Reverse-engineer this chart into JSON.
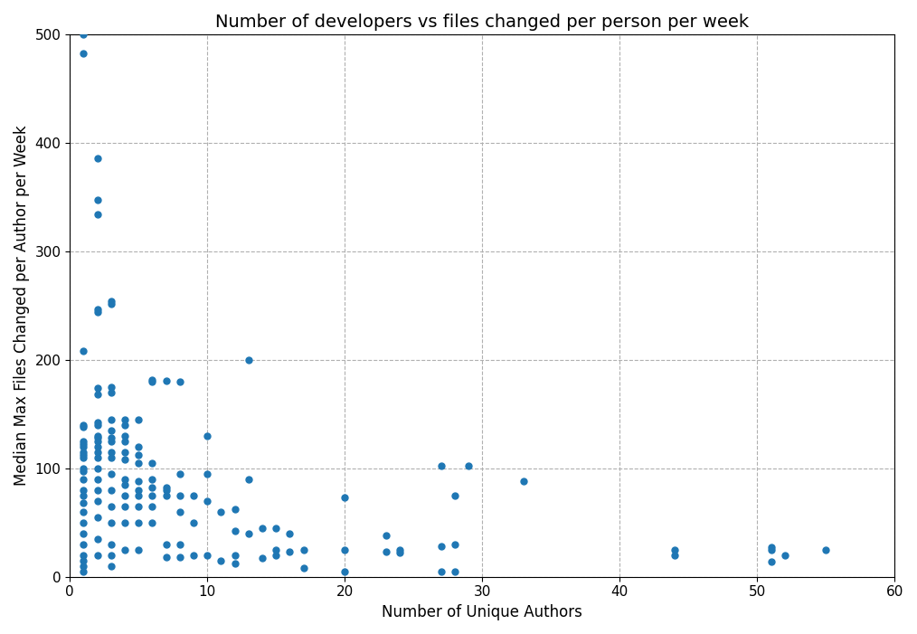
{
  "title": "Number of developers vs files changed per person per week",
  "xlabel": "Number of Unique Authors",
  "ylabel": "Median Max Files Changed per Author per Week",
  "xlim": [
    0,
    60
  ],
  "ylim": [
    0,
    500
  ],
  "xticks": [
    0,
    10,
    20,
    30,
    40,
    50,
    60
  ],
  "yticks": [
    0,
    100,
    200,
    300,
    400,
    500
  ],
  "marker_color": "#1f77b4",
  "marker_size": 25,
  "x": [
    1,
    1,
    1,
    1,
    1,
    1,
    1,
    1,
    1,
    1,
    1,
    1,
    1,
    1,
    1,
    1,
    1,
    1,
    1,
    1,
    1,
    1,
    1,
    1,
    1,
    2,
    2,
    2,
    2,
    2,
    2,
    2,
    2,
    2,
    2,
    2,
    2,
    2,
    2,
    2,
    2,
    2,
    2,
    2,
    2,
    2,
    2,
    3,
    3,
    3,
    3,
    3,
    3,
    3,
    3,
    3,
    3,
    3,
    3,
    3,
    3,
    3,
    3,
    3,
    4,
    4,
    4,
    4,
    4,
    4,
    4,
    4,
    4,
    4,
    4,
    4,
    5,
    5,
    5,
    5,
    5,
    5,
    5,
    5,
    5,
    5,
    6,
    6,
    6,
    6,
    6,
    6,
    6,
    6,
    7,
    7,
    7,
    7,
    7,
    7,
    8,
    8,
    8,
    8,
    8,
    8,
    9,
    9,
    9,
    10,
    10,
    10,
    10,
    11,
    11,
    12,
    12,
    12,
    12,
    13,
    13,
    13,
    14,
    14,
    15,
    15,
    15,
    16,
    16,
    17,
    17,
    20,
    20,
    20,
    23,
    23,
    24,
    24,
    27,
    27,
    27,
    28,
    28,
    28,
    29,
    33,
    44,
    44,
    51,
    51,
    51,
    52,
    55
  ],
  "y": [
    500,
    483,
    208,
    140,
    138,
    125,
    122,
    120,
    115,
    112,
    110,
    100,
    97,
    90,
    80,
    75,
    68,
    60,
    50,
    40,
    30,
    20,
    15,
    10,
    5,
    386,
    348,
    334,
    247,
    244,
    174,
    168,
    142,
    140,
    130,
    128,
    125,
    120,
    115,
    110,
    100,
    90,
    80,
    70,
    55,
    35,
    20,
    254,
    252,
    175,
    170,
    145,
    135,
    128,
    125,
    115,
    110,
    95,
    80,
    65,
    50,
    30,
    20,
    10,
    145,
    140,
    130,
    125,
    115,
    108,
    90,
    85,
    75,
    65,
    50,
    25,
    145,
    120,
    112,
    105,
    88,
    80,
    75,
    65,
    50,
    25,
    182,
    180,
    105,
    90,
    82,
    75,
    65,
    50,
    181,
    82,
    80,
    75,
    30,
    18,
    180,
    95,
    75,
    60,
    30,
    18,
    75,
    50,
    20,
    130,
    95,
    70,
    20,
    60,
    15,
    62,
    42,
    20,
    12,
    200,
    90,
    40,
    45,
    17,
    45,
    25,
    20,
    40,
    23,
    25,
    8,
    73,
    25,
    5,
    38,
    23,
    25,
    22,
    102,
    28,
    5,
    75,
    30,
    5,
    102,
    88,
    25,
    20,
    27,
    25,
    14,
    20,
    25
  ]
}
